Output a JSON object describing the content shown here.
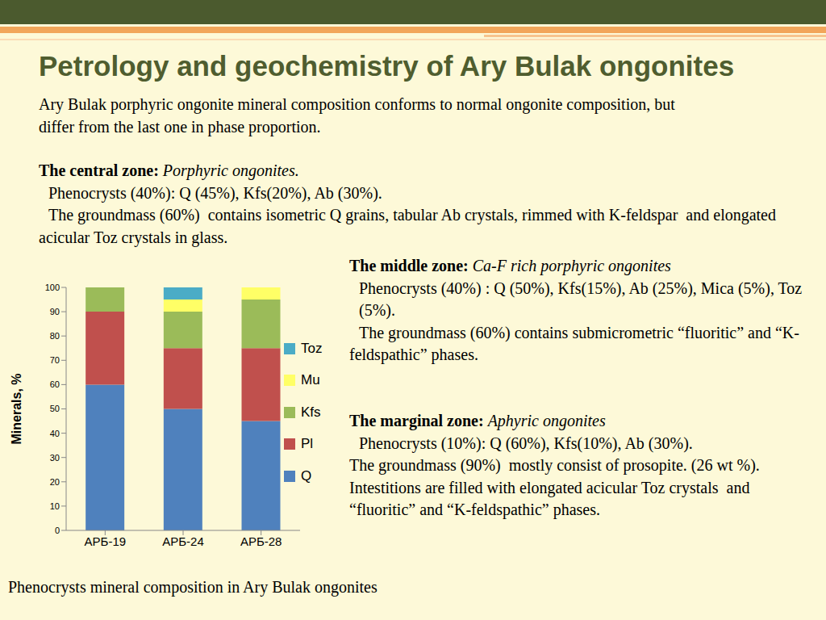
{
  "slide": {
    "title": "Petrology and geochemistry of Ary Bulak ongonites",
    "intro": "Ary Bulak porphyric ongonite mineral composition conforms to normal ongonite composition, but differ from the last one in phase proportion.",
    "zones": [
      {
        "heading": "The central zone:",
        "subtitle": "Porphyric ongonites.",
        "phenocrysts": "Phenocrysts (40%): Q (45%), Kfs(20%), Ab (30%).",
        "groundmass": "The groundmass (60%)  contains isometric Q grains, tabular Ab crystals, rimmed with K-feldspar  and elongated acicular Toz crystals in glass."
      },
      {
        "heading": "The middle zone:",
        "subtitle": "Ca-F rich porphyric ongonites",
        "phenocrysts": "Phenocrysts (40%) : Q (50%), Kfs(15%), Ab (25%), Mica (5%), Toz (5%).",
        "groundmass": "The groundmass (60%) contains submicrometric “fluoritic” and “K-feldspathic” phases."
      },
      {
        "heading": "The marginal zone:",
        "subtitle": "Aphyric ongonites",
        "phenocrysts": "Phenocrysts (10%): Q (60%), Kfs(10%), Ab (30%).",
        "groundmass": "The groundmass (90%)  mostly consist of prosopite. (26 wt %). Intestitions are filled with elongated acicular Toz crystals  and “fluoritic” and “K-feldspathic” phases."
      }
    ],
    "caption": "Phenocrysts mineral composition in Ary Bulak ongonites"
  },
  "chart_data": {
    "type": "bar",
    "stacked": true,
    "y_label": "Minerals, %",
    "categories": [
      "АРБ-19",
      "АРБ-24",
      "АРБ-28"
    ],
    "series": [
      {
        "name": "Q",
        "color": "#4f81bd",
        "values": [
          60,
          50,
          45
        ]
      },
      {
        "name": "Pl",
        "color": "#c0504d",
        "values": [
          30,
          25,
          30
        ]
      },
      {
        "name": "Kfs",
        "color": "#9bbb59",
        "values": [
          10,
          15,
          20
        ]
      },
      {
        "name": "Mu",
        "color": "#ffff66",
        "values": [
          0,
          5,
          5
        ]
      },
      {
        "name": "Toz",
        "color": "#4bacc6",
        "values": [
          0,
          5,
          0
        ]
      }
    ],
    "ylim": [
      0,
      100
    ],
    "yticks": [
      0,
      10,
      20,
      30,
      40,
      50,
      60,
      70,
      80,
      90,
      100
    ],
    "grid": false,
    "legend": "right"
  }
}
